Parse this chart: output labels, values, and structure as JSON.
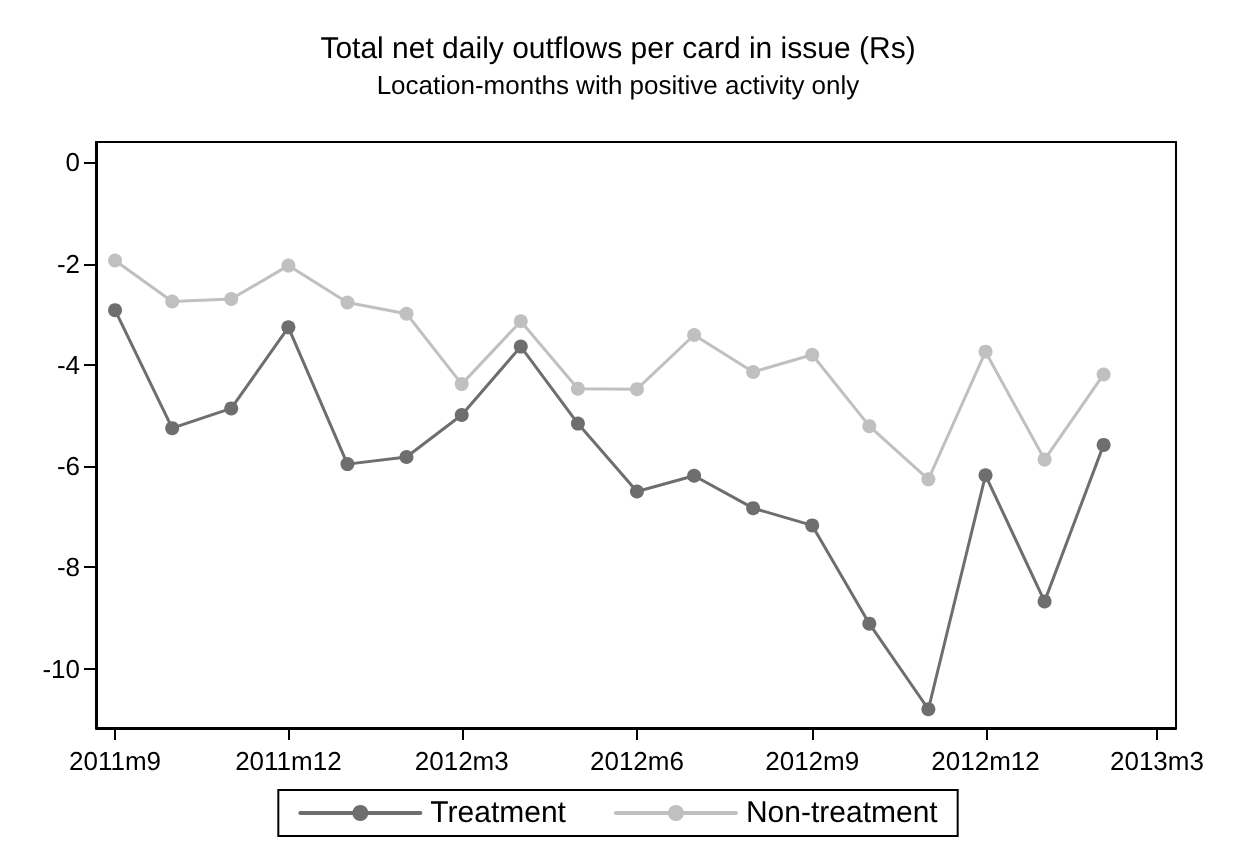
{
  "chart_data": {
    "type": "line",
    "title": "Total net daily outflows per card in issue (Rs)",
    "subtitle": "Location-months with positive activity only",
    "x": [
      "2011-09",
      "2011-10",
      "2011-11",
      "2011-12",
      "2012-01",
      "2012-02",
      "2012-03",
      "2012-04",
      "2012-05",
      "2012-06",
      "2012-07",
      "2012-08",
      "2012-09",
      "2012-10",
      "2012-11",
      "2012-12",
      "2013-01",
      "2013-02"
    ],
    "series": [
      {
        "name": "Treatment",
        "color": "#6e6e6e",
        "values": [
          -2.92,
          -5.25,
          -4.86,
          -3.26,
          -5.96,
          -5.82,
          -4.99,
          -3.64,
          -5.16,
          -6.5,
          -6.19,
          -6.83,
          -7.17,
          -9.11,
          -10.8,
          -6.18,
          -8.67,
          -5.58
        ]
      },
      {
        "name": "Non-treatment",
        "color": "#c0c0c0",
        "values": [
          -1.94,
          -2.75,
          -2.7,
          -2.04,
          -2.77,
          -2.99,
          -4.38,
          -3.14,
          -4.47,
          -4.48,
          -3.41,
          -4.14,
          -3.8,
          -5.21,
          -6.26,
          -3.74,
          -5.87,
          -4.19
        ]
      }
    ],
    "xlim": [
      "2011-08-22",
      "2013-03-11"
    ],
    "xticks": [
      {
        "value": "2011-09",
        "label": "2011m9"
      },
      {
        "value": "2011-12",
        "label": "2011m12"
      },
      {
        "value": "2012-03",
        "label": "2012m3"
      },
      {
        "value": "2012-06",
        "label": "2012m6"
      },
      {
        "value": "2012-09",
        "label": "2012m9"
      },
      {
        "value": "2012-12",
        "label": "2012m12"
      },
      {
        "value": "2013-03",
        "label": "2013m3"
      }
    ],
    "ylim": [
      -11.17,
      0.4
    ],
    "yticks": [
      0,
      -2,
      -4,
      -6,
      -8,
      -10
    ],
    "grid": false,
    "legend": "bottom",
    "marker": "circle",
    "line_style": "solid"
  }
}
